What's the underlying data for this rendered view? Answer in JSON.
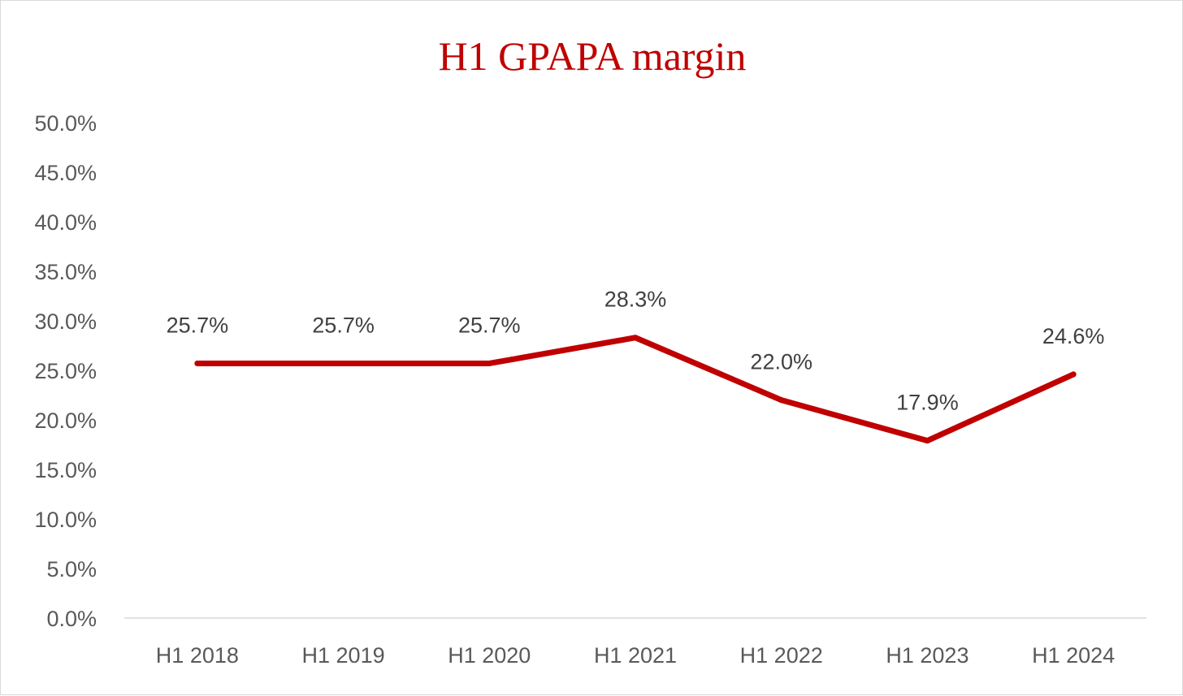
{
  "chart_data": {
    "type": "line",
    "title": "H1 GPAPA margin",
    "xlabel": "",
    "ylabel": "",
    "categories": [
      "H1 2018",
      "H1 2019",
      "H1 2020",
      "H1 2021",
      "H1 2022",
      "H1 2023",
      "H1 2024"
    ],
    "series": [
      {
        "values": [
          25.7,
          25.7,
          25.7,
          28.3,
          22.0,
          17.9,
          24.6
        ],
        "labels": [
          "25.7%",
          "25.7%",
          "25.7%",
          "28.3%",
          "22.0%",
          "17.9%",
          "24.6%"
        ],
        "color": "#c00000"
      }
    ],
    "ylim": [
      0,
      50
    ],
    "yticks": [
      "0.0%",
      "5.0%",
      "10.0%",
      "15.0%",
      "20.0%",
      "25.0%",
      "30.0%",
      "35.0%",
      "40.0%",
      "45.0%",
      "50.0%"
    ],
    "grid": false,
    "legend": "none",
    "title_color": "#c00000"
  }
}
